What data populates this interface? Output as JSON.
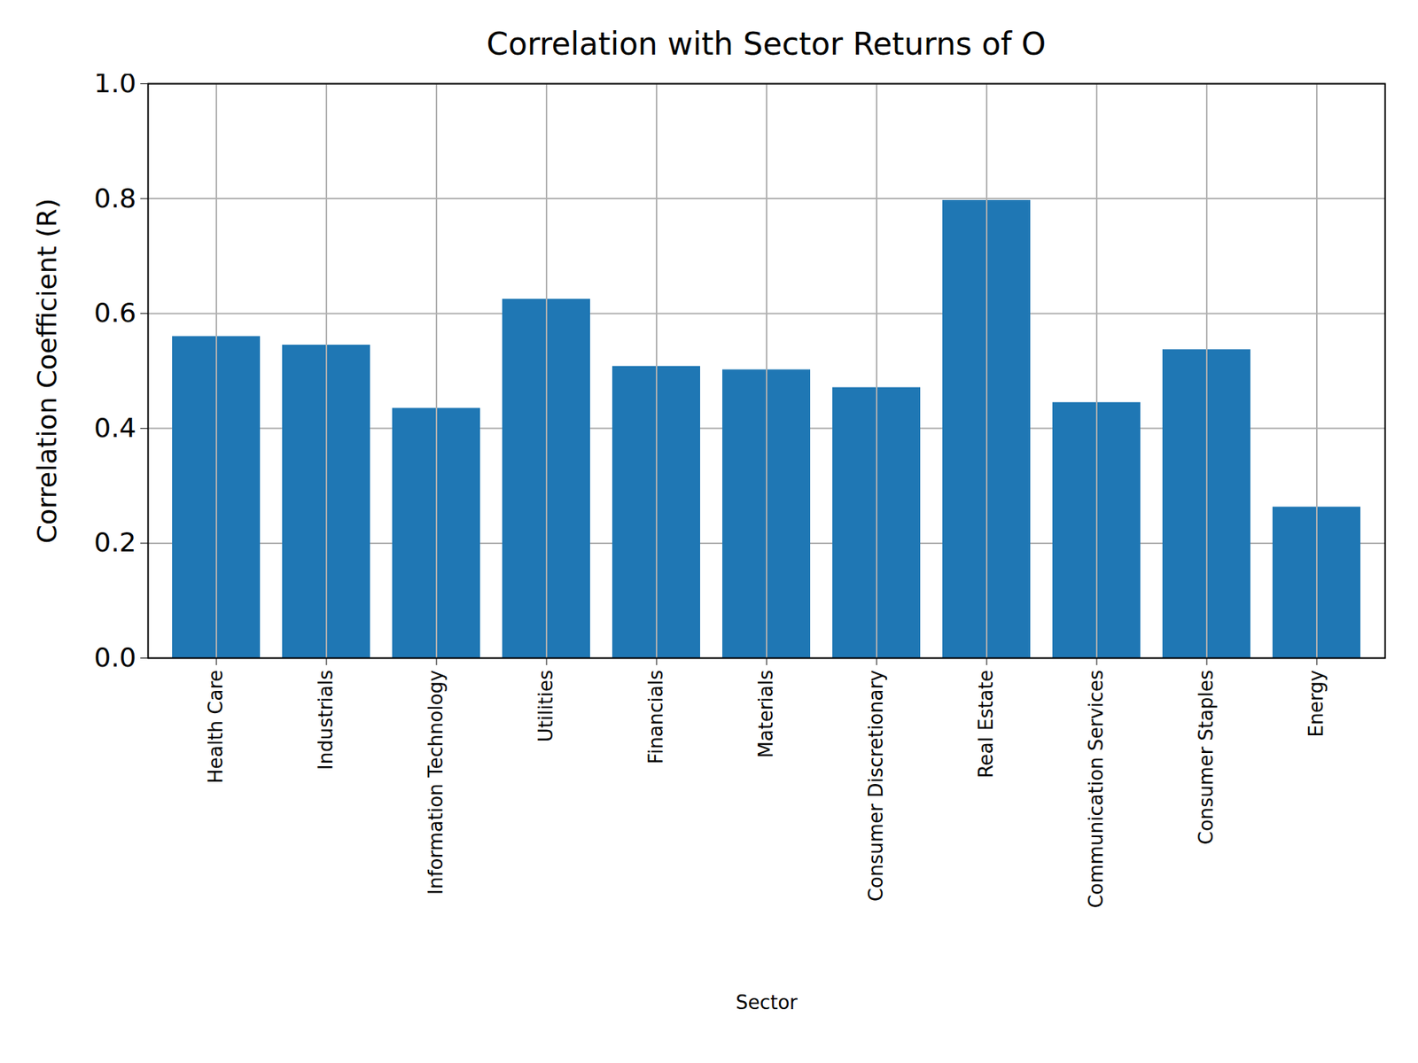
{
  "chart_data": {
    "type": "bar",
    "title": "Correlation with Sector Returns of O",
    "xlabel": "Sector",
    "ylabel": "Correlation Coefficient (R)",
    "categories": [
      "Health Care",
      "Industrials",
      "Information Technology",
      "Utilities",
      "Financials",
      "Materials",
      "Consumer Discretionary",
      "Real Estate",
      "Communication Services",
      "Consumer Staples",
      "Energy"
    ],
    "values": [
      0.56,
      0.545,
      0.435,
      0.625,
      0.508,
      0.502,
      0.471,
      0.797,
      0.445,
      0.537,
      0.263
    ],
    "color": "#1f77b4",
    "ylim": [
      0,
      1
    ],
    "yticks": [
      {
        "value": 0,
        "label": "0.0"
      },
      0.2,
      0.4,
      0.6,
      0.8,
      {
        "value": 1,
        "label": "1.0"
      }
    ],
    "grid": true
  }
}
